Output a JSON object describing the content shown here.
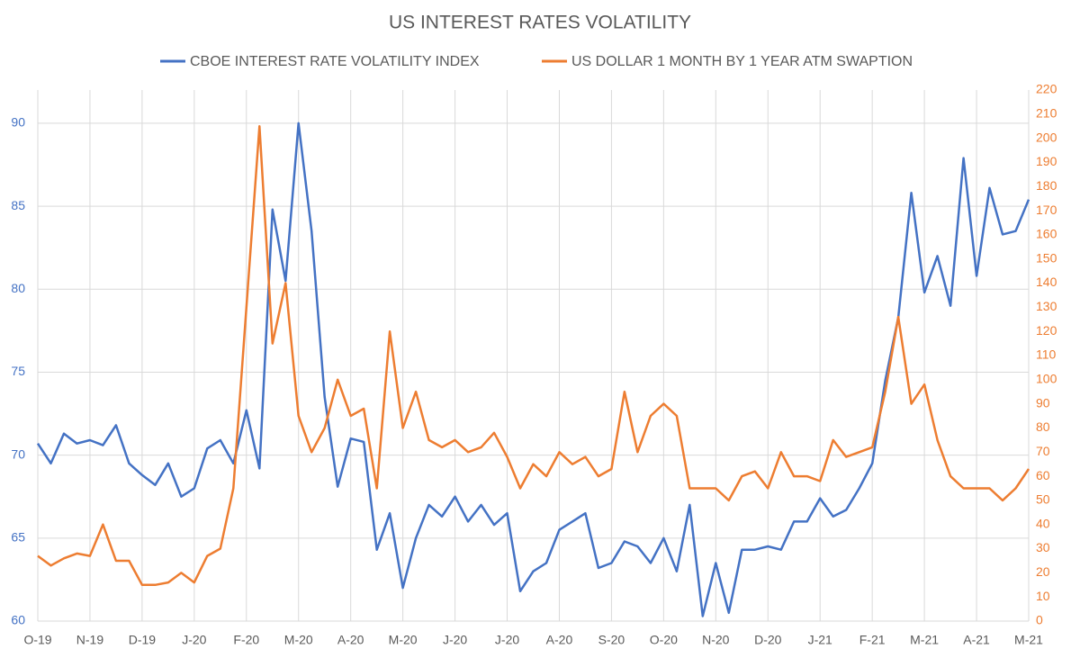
{
  "chart_data": {
    "type": "line",
    "title": "US INTEREST RATES VOLATILITY",
    "categories": [
      "O-19",
      null,
      null,
      null,
      "N-19",
      null,
      null,
      null,
      "D-19",
      null,
      null,
      null,
      "J-20",
      null,
      null,
      null,
      "F-20",
      null,
      null,
      null,
      "M-20",
      null,
      null,
      null,
      "A-20",
      null,
      null,
      null,
      "M-20",
      null,
      null,
      null,
      "J-20",
      null,
      null,
      null,
      "J-20",
      null,
      null,
      null,
      "A-20",
      null,
      null,
      null,
      "S-20",
      null,
      null,
      null,
      "O-20",
      null,
      null,
      null,
      "N-20",
      null,
      null,
      null,
      "D-20",
      null,
      null,
      null,
      "J-21",
      null,
      null,
      null,
      "F-21",
      null,
      null,
      null,
      "M-21",
      null,
      null,
      null,
      "A-21",
      null,
      null,
      null,
      "M-21"
    ],
    "series": [
      {
        "name": "CBOE INTEREST RATE VOLATILITY INDEX",
        "color": "#4472c4",
        "values": [
          70.7,
          69.5,
          71.3,
          70.7,
          70.9,
          70.6,
          71.8,
          69.5,
          68.8,
          68.2,
          69.5,
          67.5,
          68.0,
          70.4,
          70.9,
          69.5,
          72.7,
          69.2,
          84.8,
          80.5,
          90.0,
          83.5,
          73.5,
          68.1,
          71.0,
          70.8,
          64.3,
          66.5,
          62.0,
          65.0,
          67.0,
          66.3,
          67.5,
          66.0,
          67.0,
          65.8,
          66.5,
          61.8,
          63.0,
          63.5,
          65.5,
          66.0,
          66.5,
          63.2,
          63.5,
          64.8,
          64.5,
          63.5,
          65.0,
          63.0,
          67.0,
          60.3,
          63.5,
          60.5,
          64.3,
          64.3,
          64.5,
          64.3,
          66.0,
          66.0,
          67.4,
          66.3,
          66.7,
          68.0,
          69.5,
          74.5,
          78.3,
          85.8,
          79.8,
          82.0,
          79.0,
          87.9,
          80.8,
          86.1,
          83.3,
          83.5,
          85.4
        ]
      },
      {
        "name": "US DOLLAR 1 MONTH BY 1 YEAR ATM SWAPTION",
        "color": "#ed7d31",
        "axis": "y2",
        "values": [
          27,
          23,
          26,
          28,
          27,
          40,
          25,
          25,
          15,
          15,
          16,
          20,
          16,
          27,
          30,
          55,
          130,
          205,
          115,
          140,
          85,
          70,
          80,
          100,
          85,
          88,
          55,
          120,
          80,
          95,
          75,
          72,
          75,
          70,
          72,
          78,
          68,
          55,
          65,
          60,
          70,
          65,
          68,
          60,
          63,
          95,
          70,
          85,
          90,
          85,
          55,
          55,
          55,
          50,
          60,
          62,
          55,
          70,
          60,
          60,
          58,
          75,
          68,
          70,
          72,
          95,
          126,
          90,
          98,
          75,
          60,
          55,
          55,
          55,
          50,
          55,
          63
        ]
      }
    ],
    "ylim": [
      60,
      92
    ],
    "yticks": [
      60,
      65,
      70,
      75,
      80,
      85,
      90
    ],
    "y2lim": [
      0,
      220
    ],
    "y2ticks": [
      0,
      10,
      20,
      30,
      40,
      50,
      60,
      70,
      80,
      90,
      100,
      110,
      120,
      130,
      140,
      150,
      160,
      170,
      180,
      190,
      200,
      210,
      220
    ],
    "grid": true
  }
}
